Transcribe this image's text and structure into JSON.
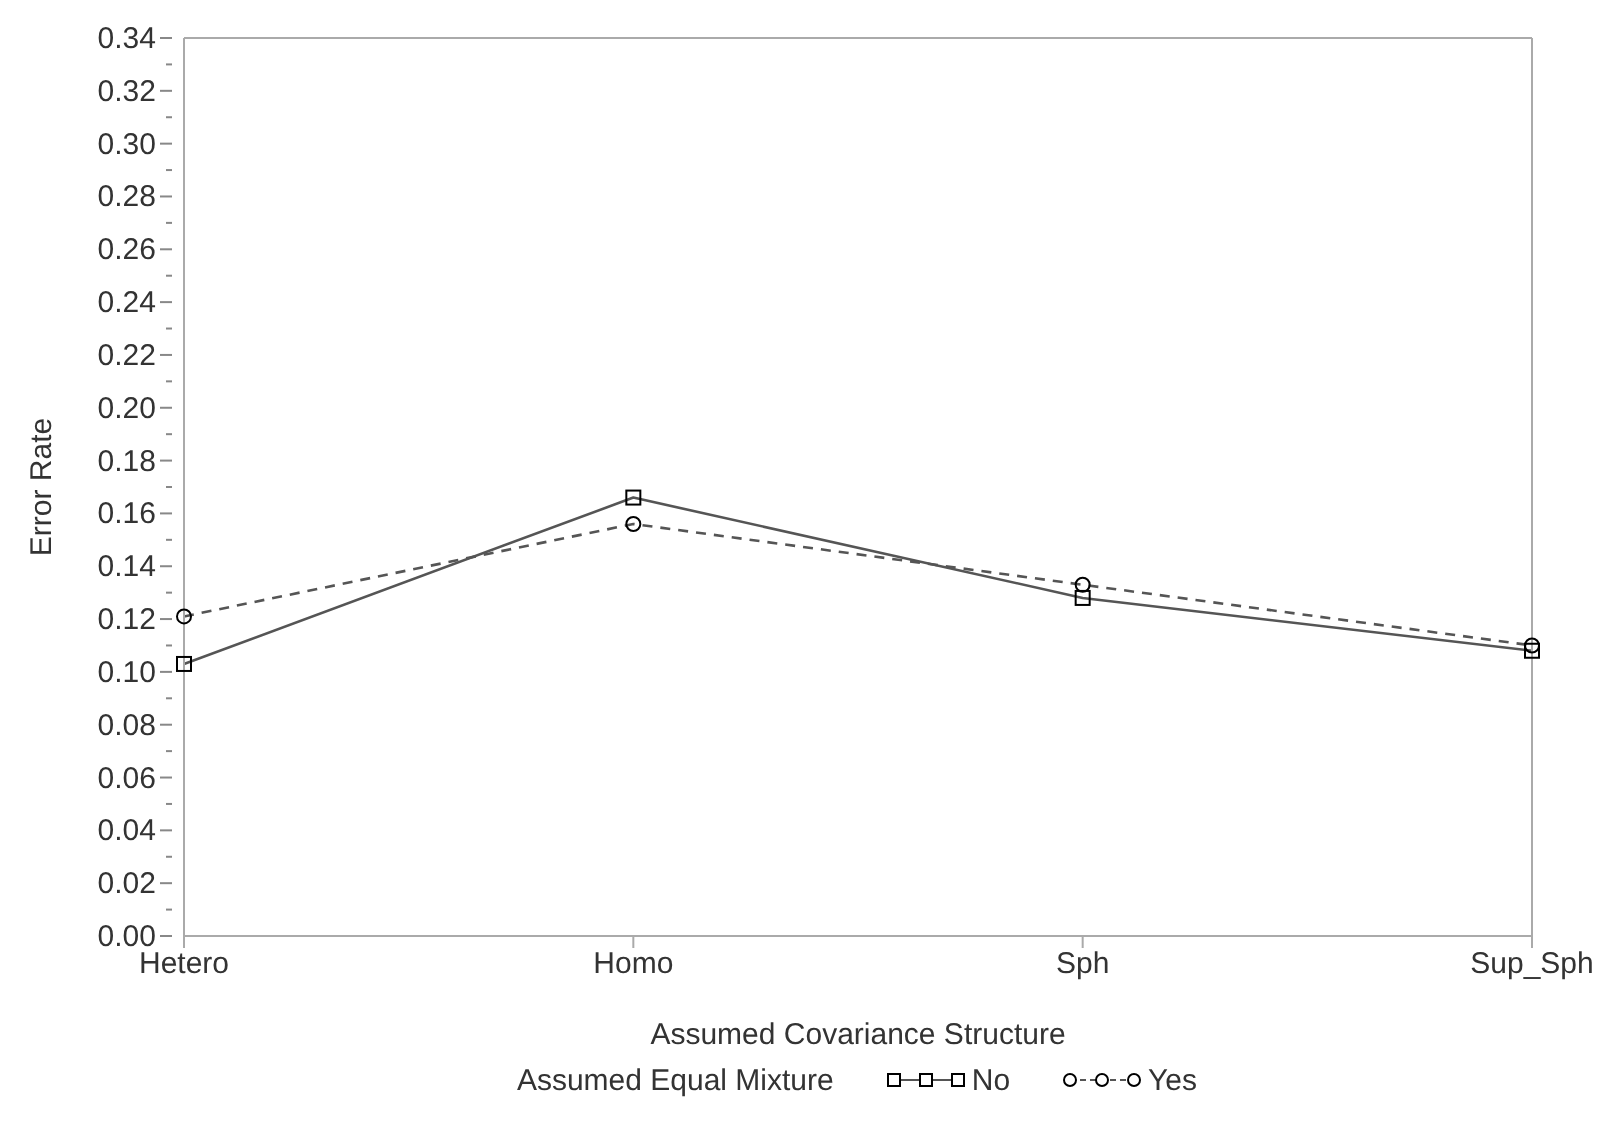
{
  "chart_data": {
    "type": "line",
    "xlabel": "Assumed Covariance Structure",
    "ylabel": "Error Rate",
    "legend_title": "Assumed Equal Mixture",
    "legend": "bottom",
    "grid": false,
    "categories": [
      "Hetero",
      "Homo",
      "Sph",
      "Sup_Sph"
    ],
    "series": [
      {
        "name": "No",
        "color": "#555555",
        "marker": "square",
        "line_style": "solid",
        "values": [
          0.103,
          0.166,
          0.128,
          0.108
        ]
      },
      {
        "name": "Yes",
        "color": "#555555",
        "marker": "circle",
        "line_style": "dashed",
        "values": [
          0.121,
          0.156,
          0.133,
          0.11
        ]
      }
    ],
    "ylim": [
      0,
      0.34
    ],
    "yticks": [
      {
        "value": 0,
        "label": "0.00"
      },
      {
        "value": 0.01,
        "label": null
      },
      {
        "value": 0.02,
        "label": "0.02"
      },
      {
        "value": 0.03,
        "label": null
      },
      {
        "value": 0.04,
        "label": "0.04"
      },
      {
        "value": 0.05,
        "label": null
      },
      {
        "value": 0.06,
        "label": "0.06"
      },
      {
        "value": 0.07,
        "label": null
      },
      {
        "value": 0.08,
        "label": "0.08"
      },
      {
        "value": 0.09,
        "label": null
      },
      {
        "value": 0.1,
        "label": "0.10"
      },
      {
        "value": 0.11,
        "label": null
      },
      {
        "value": 0.12,
        "label": "0.12"
      },
      {
        "value": 0.13,
        "label": null
      },
      {
        "value": 0.14,
        "label": "0.14"
      },
      {
        "value": 0.15,
        "label": null
      },
      {
        "value": 0.16,
        "label": "0.16"
      },
      {
        "value": 0.17,
        "label": null
      },
      {
        "value": 0.18,
        "label": "0.18"
      },
      {
        "value": 0.19,
        "label": null
      },
      {
        "value": 0.2,
        "label": "0.20"
      },
      {
        "value": 0.21,
        "label": null
      },
      {
        "value": 0.22,
        "label": "0.22"
      },
      {
        "value": 0.23,
        "label": null
      },
      {
        "value": 0.24,
        "label": "0.24"
      },
      {
        "value": 0.25,
        "label": null
      },
      {
        "value": 0.26,
        "label": "0.26"
      },
      {
        "value": 0.27,
        "label": null
      },
      {
        "value": 0.28,
        "label": "0.28"
      },
      {
        "value": 0.29,
        "label": null
      },
      {
        "value": 0.3,
        "label": "0.30"
      },
      {
        "value": 0.31,
        "label": null
      },
      {
        "value": 0.32,
        "label": "0.32"
      },
      {
        "value": 0.33,
        "label": null
      },
      {
        "value": 0.34,
        "label": "0.34"
      }
    ]
  }
}
